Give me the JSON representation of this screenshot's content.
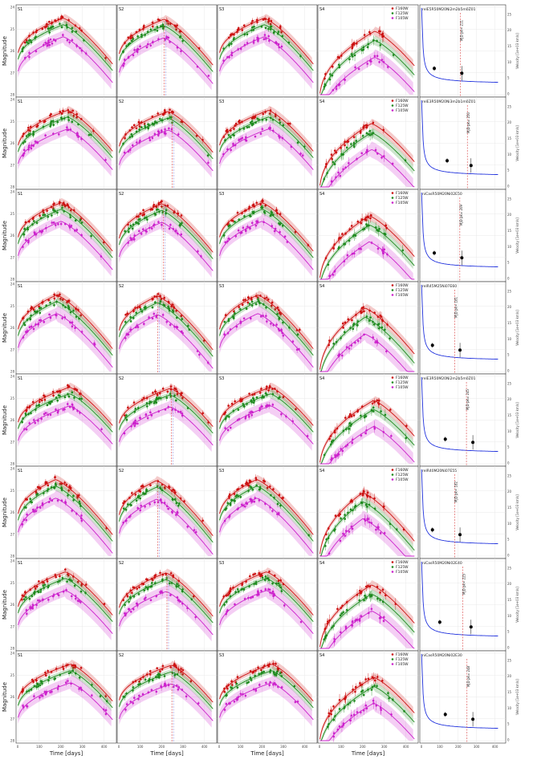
{
  "chart_data": {
    "type": "scatter",
    "colors": {
      "F160W": "#cc1111",
      "F125W": "#1e8a1e",
      "F105W": "#cc22cc",
      "velocity": "#2233dd",
      "vline": "#d94040",
      "vline_alt": "#7f7fdd"
    },
    "axes": {
      "left_ylabel": "Magnitude",
      "right_ylabel": "Velocity [1e+03 km/s]",
      "xlabel": "Time [days]",
      "mag_ticks": [
        "24",
        "25",
        "26",
        "27",
        "28"
      ],
      "time_ticks": [
        "0",
        "100",
        "200",
        "300",
        "400"
      ],
      "vel_ticks": [
        "0",
        "5",
        "10",
        "15",
        "20",
        "25"
      ],
      "vel_time_ticks": [
        "0",
        "100",
        "200",
        "300",
        "400"
      ],
      "mag_range": [
        24,
        28
      ],
      "time_range": [
        0,
        450
      ],
      "vel_range": [
        0,
        27
      ]
    },
    "panel_labels": [
      "S1",
      "S2",
      "S3",
      "S4"
    ],
    "legend": [
      "F160W",
      "F125W",
      "F105W"
    ],
    "rows": [
      {
        "model": "relE5R50M20Ni2m2b5m0Z01",
        "vlabel": "MJD pk= 211",
        "peak_day": 211,
        "fade": 0.25,
        "nir_peak": 210,
        "s4_peak": 255,
        "vel_point": [
          70,
          8.0
        ],
        "vel_point2": [
          220,
          6.5
        ]
      },
      {
        "model": "relE3R50M20Ni3m2b1m0Z01",
        "vlabel": "MJD pk= 250",
        "peak_day": 250,
        "fade": 0.3,
        "nir_peak": 230,
        "s4_peak": 240,
        "vel_point": [
          140,
          8.0
        ],
        "vel_point2": [
          270,
          6.5
        ]
      },
      {
        "model": "niCasR50M20Ni02E50",
        "vlabel": "MJD pk= 209",
        "peak_day": 209,
        "fade": 0.2,
        "nir_peak": 200,
        "s4_peak": 230,
        "vel_point": [
          70,
          8.0
        ],
        "vel_point2": [
          220,
          6.5
        ]
      },
      {
        "model": "relR45M25Ni07E60",
        "vlabel": "MJD pk= 181",
        "peak_day": 181,
        "fade": 0.45,
        "nir_peak": 180,
        "s4_peak": 210,
        "vel_point": [
          60,
          8.0
        ],
        "vel_point2": [
          210,
          6.5
        ]
      },
      {
        "model": "relE3R50M20Ni2m2b5m0Z01",
        "vlabel": "MJD pk= 245",
        "peak_day": 245,
        "fade": 0.25,
        "nir_peak": 240,
        "s4_peak": 250,
        "vel_point": [
          130,
          7.5
        ],
        "vel_point2": [
          280,
          6.5
        ]
      },
      {
        "model": "relR40M20Ni07E55",
        "vlabel": "MJD pk= 182",
        "peak_day": 182,
        "fade": 0.45,
        "nir_peak": 175,
        "s4_peak": 200,
        "vel_point": [
          60,
          8.0
        ],
        "vel_point2": [
          210,
          6.5
        ]
      },
      {
        "model": "niCasR50M20Ni02E40",
        "vlabel": "MJD pk= 225",
        "peak_day": 225,
        "fade": 0.2,
        "nir_peak": 220,
        "s4_peak": 240,
        "vel_point": [
          100,
          8.0
        ],
        "vel_point2": [
          270,
          6.5
        ]
      },
      {
        "model": "niCasR50M20Ni02E30",
        "vlabel": "MJD pk= 248",
        "peak_day": 248,
        "fade": 0.25,
        "nir_peak": 245,
        "s4_peak": 250,
        "vel_point": [
          130,
          8.0
        ],
        "vel_point2": [
          280,
          6.5
        ]
      }
    ]
  }
}
